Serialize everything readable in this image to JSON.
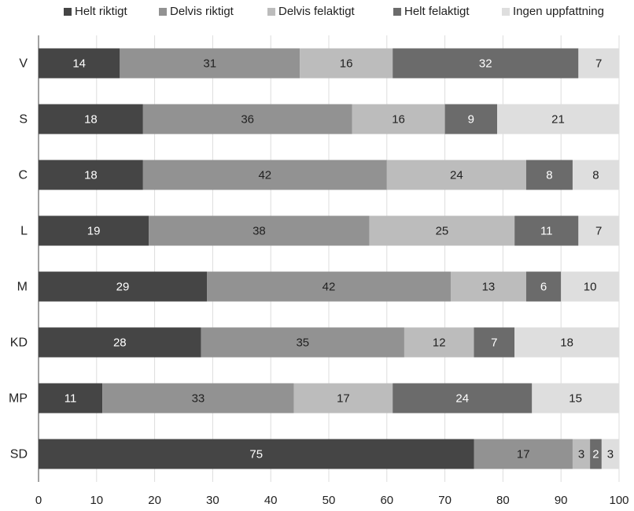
{
  "chart_data": {
    "type": "bar",
    "orientation": "horizontal",
    "stacked": true,
    "title": "",
    "xlabel": "",
    "ylabel": "",
    "xlim": [
      0,
      100
    ],
    "x_ticks": [
      "0",
      "10",
      "20",
      "30",
      "40",
      "50",
      "60",
      "70",
      "80",
      "90",
      "100"
    ],
    "grid": true,
    "legend_position": "top",
    "categories": [
      "V",
      "S",
      "C",
      "L",
      "M",
      "KD",
      "MP",
      "SD"
    ],
    "series": [
      {
        "name": "Helt riktigt",
        "color": "#454545",
        "label_color": "#ffffff",
        "values": [
          14,
          18,
          18,
          19,
          29,
          28,
          11,
          75
        ]
      },
      {
        "name": "Delvis riktigt",
        "color": "#929292",
        "label_color": "#222222",
        "values": [
          31,
          36,
          42,
          38,
          42,
          35,
          33,
          17
        ]
      },
      {
        "name": "Delvis felaktigt",
        "color": "#bcbcbc",
        "label_color": "#222222",
        "values": [
          16,
          16,
          24,
          25,
          13,
          12,
          17,
          3
        ]
      },
      {
        "name": "Helt felaktigt",
        "color": "#6b6b6b",
        "label_color": "#ffffff",
        "values": [
          32,
          9,
          8,
          11,
          6,
          7,
          24,
          2
        ]
      },
      {
        "name": "Ingen uppfattning",
        "color": "#dedede",
        "label_color": "#222222",
        "values": [
          7,
          21,
          8,
          7,
          10,
          18,
          15,
          3
        ]
      }
    ]
  }
}
